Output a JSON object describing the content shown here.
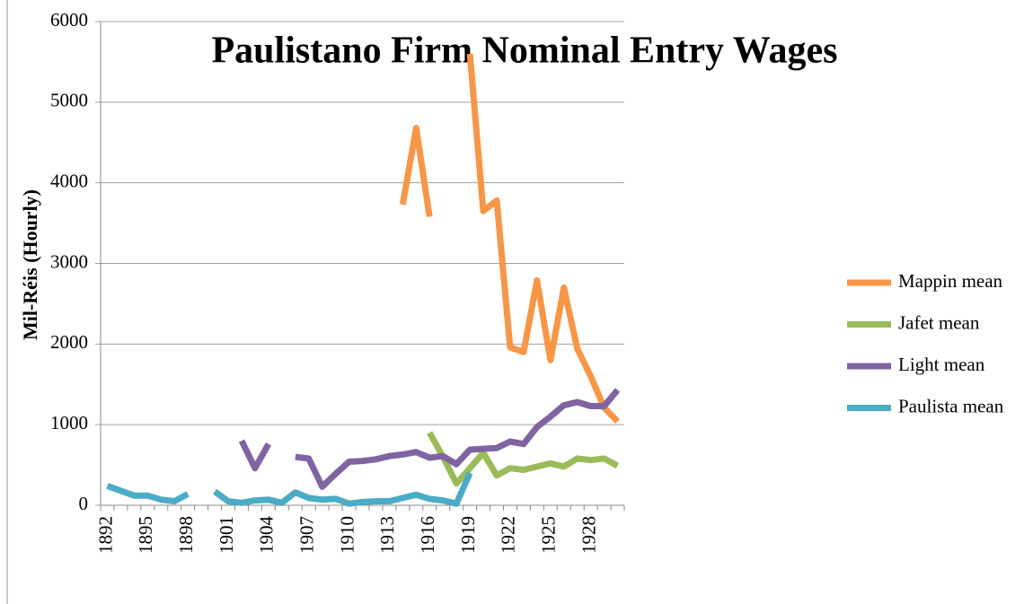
{
  "chart_data": {
    "type": "line",
    "title": "Paulistano Firm Nominal Entry Wages",
    "y_label": "Mil-Réis (Hourly)",
    "categories": [
      "1892",
      null,
      null,
      "1895",
      null,
      null,
      "1898",
      null,
      null,
      "1901",
      null,
      null,
      "1904",
      null,
      null,
      "1907",
      null,
      null,
      "1910",
      null,
      null,
      "1913",
      null,
      null,
      "1916",
      null,
      null,
      "1919",
      null,
      null,
      "1922",
      null,
      null,
      "1925",
      null,
      null,
      "1928",
      null,
      null
    ],
    "series": [
      {
        "name": "Mappin mean",
        "color": "#f79646",
        "values": [
          null,
          null,
          null,
          null,
          null,
          null,
          null,
          null,
          null,
          null,
          null,
          null,
          null,
          null,
          null,
          null,
          null,
          null,
          null,
          null,
          null,
          null,
          3730,
          4680,
          3580,
          null,
          null,
          5600,
          3650,
          3780,
          1960,
          1900,
          2790,
          1800,
          2700,
          1940,
          1600,
          1210,
          1040
        ]
      },
      {
        "name": "Jafet mean",
        "color": "#9bbb59",
        "values": [
          null,
          null,
          null,
          null,
          null,
          null,
          null,
          null,
          null,
          null,
          null,
          null,
          null,
          null,
          null,
          null,
          null,
          null,
          null,
          null,
          null,
          null,
          null,
          null,
          900,
          600,
          270,
          460,
          650,
          370,
          460,
          440,
          480,
          520,
          480,
          580,
          560,
          580,
          490
        ]
      },
      {
        "name": "Light mean",
        "color": "#8064a2",
        "values": [
          null,
          null,
          null,
          null,
          null,
          null,
          null,
          null,
          null,
          null,
          800,
          460,
          760,
          null,
          600,
          580,
          230,
          390,
          540,
          550,
          570,
          610,
          630,
          660,
          590,
          610,
          510,
          690,
          700,
          710,
          790,
          760,
          970,
          1100,
          1240,
          1280,
          1230,
          1230,
          1430
        ]
      },
      {
        "name": "Paulista mean",
        "color": "#4bacc6",
        "values": [
          240,
          180,
          120,
          120,
          70,
          50,
          140,
          null,
          170,
          50,
          30,
          60,
          70,
          30,
          160,
          90,
          70,
          80,
          20,
          40,
          50,
          50,
          90,
          130,
          80,
          60,
          20,
          400,
          null,
          null,
          null,
          null,
          null,
          null,
          null,
          null,
          null,
          null,
          null
        ]
      }
    ],
    "ylim": [
      0,
      6000
    ],
    "yticks": [
      0,
      1000,
      2000,
      3000,
      4000,
      5000,
      6000
    ],
    "grid": true,
    "legend": "right"
  }
}
